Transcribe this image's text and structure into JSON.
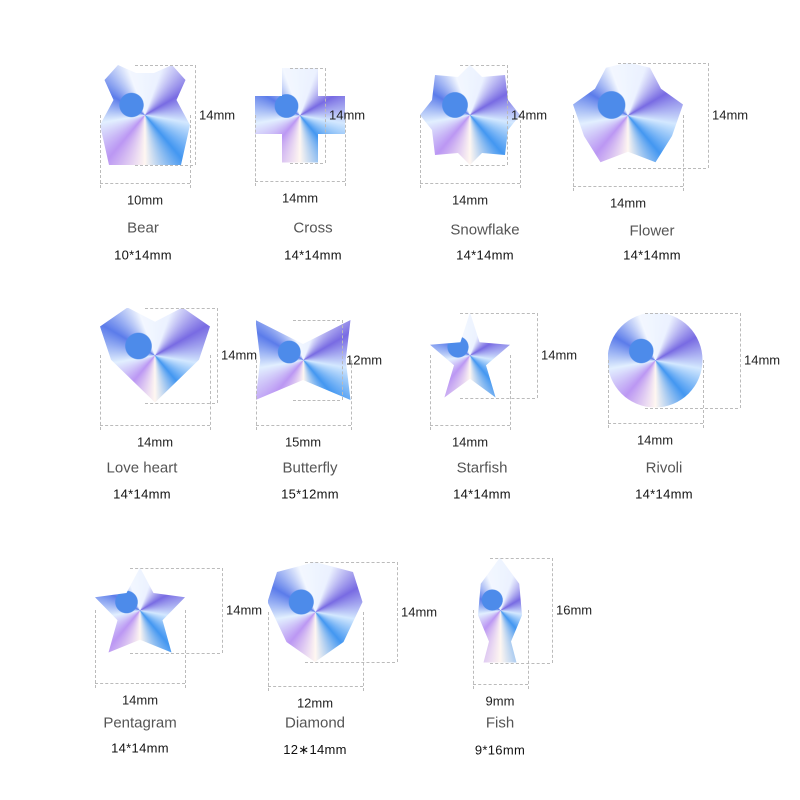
{
  "items": [
    {
      "name": "Bear",
      "width": "10mm",
      "height": "14mm",
      "size": "10*14mm"
    },
    {
      "name": "Cross",
      "width": "14mm",
      "height": "14mm",
      "size": "14*14mm"
    },
    {
      "name": "Snowflake",
      "width": "14mm",
      "height": "14mm",
      "size": "14*14mm"
    },
    {
      "name": "Flower",
      "width": "14mm",
      "height": "14mm",
      "size": "14*14mm"
    },
    {
      "name": "Love heart",
      "width": "14mm",
      "height": "14mm",
      "size": "14*14mm"
    },
    {
      "name": "Butterfly",
      "width": "15mm",
      "height": "12mm",
      "size": "15*12mm"
    },
    {
      "name": "Starfish",
      "width": "14mm",
      "height": "14mm",
      "size": "14*14mm"
    },
    {
      "name": "Rivoli",
      "width": "14mm",
      "height": "14mm",
      "size": "14*14mm"
    },
    {
      "name": "Pentagram",
      "width": "14mm",
      "height": "14mm",
      "size": "14*14mm"
    },
    {
      "name": "Diamond",
      "width": "12mm",
      "height": "14mm",
      "size": "12∗14mm"
    },
    {
      "name": "Fish",
      "width": "9mm",
      "height": "16mm",
      "size": "9*16mm"
    }
  ],
  "colors": {
    "crystal_blue": "#2f8cf0",
    "crystal_violet": "#6a5be0",
    "dash": "#bbbbbb"
  }
}
